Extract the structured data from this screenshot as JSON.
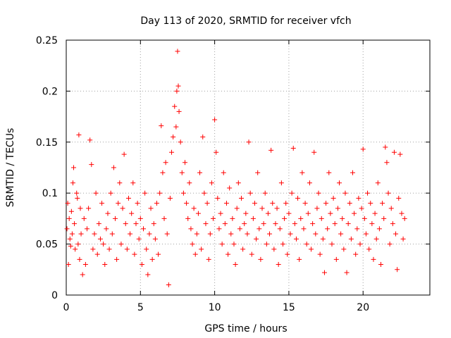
{
  "chart_data": {
    "type": "scatter",
    "title": "Day 113 of 2020, SRMTID for receiver vfch",
    "xlabel": "GPS time / hours",
    "ylabel": "SRMTID / TECUs",
    "xlim": [
      0,
      24.5
    ],
    "ylim": [
      0,
      0.25
    ],
    "x_ticks": [
      0,
      5,
      10,
      15,
      20
    ],
    "x_tick_labels": [
      "0",
      "5",
      "10",
      "15",
      "20"
    ],
    "y_ticks": [
      0,
      0.05,
      0.1,
      0.15,
      0.2,
      0.25
    ],
    "y_tick_labels": [
      "0",
      "0.05",
      "0.1",
      "0.15",
      "0.2",
      "0.25"
    ],
    "grid": true,
    "marker": "+",
    "color": "#ff0000",
    "series": [
      {
        "name": "SRMTID",
        "points": [
          [
            0.05,
            0.065
          ],
          [
            0.1,
            0.09
          ],
          [
            0.15,
            0.03
          ],
          [
            0.2,
            0.075
          ],
          [
            0.25,
            0.055
          ],
          [
            0.3,
            0.048
          ],
          [
            0.35,
            0.082
          ],
          [
            0.4,
            0.06
          ],
          [
            0.45,
            0.11
          ],
          [
            0.5,
            0.125
          ],
          [
            0.55,
            0.07
          ],
          [
            0.6,
            0.045
          ],
          [
            0.7,
            0.1
          ],
          [
            0.75,
            0.095
          ],
          [
            0.8,
            0.05
          ],
          [
            0.85,
            0.157
          ],
          [
            0.9,
            0.035
          ],
          [
            0.95,
            0.085
          ],
          [
            1.0,
            0.06
          ],
          [
            1.1,
            0.02
          ],
          [
            1.2,
            0.075
          ],
          [
            1.3,
            0.03
          ],
          [
            1.4,
            0.065
          ],
          [
            1.5,
            0.085
          ],
          [
            1.6,
            0.152
          ],
          [
            1.7,
            0.128
          ],
          [
            1.8,
            0.045
          ],
          [
            1.9,
            0.06
          ],
          [
            2.0,
            0.1
          ],
          [
            2.1,
            0.04
          ],
          [
            2.2,
            0.07
          ],
          [
            2.3,
            0.055
          ],
          [
            2.4,
            0.09
          ],
          [
            2.5,
            0.05
          ],
          [
            2.6,
            0.03
          ],
          [
            2.7,
            0.065
          ],
          [
            2.8,
            0.08
          ],
          [
            2.9,
            0.045
          ],
          [
            3.0,
            0.1
          ],
          [
            3.1,
            0.06
          ],
          [
            3.2,
            0.125
          ],
          [
            3.3,
            0.075
          ],
          [
            3.4,
            0.035
          ],
          [
            3.5,
            0.09
          ],
          [
            3.6,
            0.11
          ],
          [
            3.7,
            0.05
          ],
          [
            3.8,
            0.085
          ],
          [
            3.9,
            0.138
          ],
          [
            4.0,
            0.07
          ],
          [
            4.1,
            0.045
          ],
          [
            4.2,
            0.095
          ],
          [
            4.3,
            0.06
          ],
          [
            4.4,
            0.08
          ],
          [
            4.5,
            0.11
          ],
          [
            4.6,
            0.04
          ],
          [
            4.7,
            0.07
          ],
          [
            4.8,
            0.09
          ],
          [
            4.9,
            0.055
          ],
          [
            5.0,
            0.075
          ],
          [
            5.1,
            0.03
          ],
          [
            5.2,
            0.065
          ],
          [
            5.3,
            0.1
          ],
          [
            5.4,
            0.045
          ],
          [
            5.5,
            0.02
          ],
          [
            5.6,
            0.06
          ],
          [
            5.7,
            0.085
          ],
          [
            5.8,
            0.035
          ],
          [
            5.9,
            0.07
          ],
          [
            6.0,
            0.055
          ],
          [
            6.1,
            0.09
          ],
          [
            6.2,
            0.04
          ],
          [
            6.3,
            0.1
          ],
          [
            6.4,
            0.166
          ],
          [
            6.5,
            0.12
          ],
          [
            6.6,
            0.075
          ],
          [
            6.7,
            0.13
          ],
          [
            6.8,
            0.06
          ],
          [
            6.9,
            0.01
          ],
          [
            7.0,
            0.095
          ],
          [
            7.1,
            0.14
          ],
          [
            7.2,
            0.155
          ],
          [
            7.3,
            0.185
          ],
          [
            7.4,
            0.165
          ],
          [
            7.45,
            0.2
          ],
          [
            7.5,
            0.239
          ],
          [
            7.55,
            0.205
          ],
          [
            7.6,
            0.18
          ],
          [
            7.7,
            0.15
          ],
          [
            7.8,
            0.12
          ],
          [
            7.9,
            0.1
          ],
          [
            8.0,
            0.13
          ],
          [
            8.1,
            0.09
          ],
          [
            8.2,
            0.075
          ],
          [
            8.3,
            0.11
          ],
          [
            8.4,
            0.065
          ],
          [
            8.5,
            0.05
          ],
          [
            8.6,
            0.085
          ],
          [
            8.7,
            0.04
          ],
          [
            8.8,
            0.06
          ],
          [
            8.9,
            0.08
          ],
          [
            9.0,
            0.12
          ],
          [
            9.1,
            0.045
          ],
          [
            9.2,
            0.155
          ],
          [
            9.3,
            0.1
          ],
          [
            9.4,
            0.07
          ],
          [
            9.5,
            0.09
          ],
          [
            9.6,
            0.035
          ],
          [
            9.7,
            0.06
          ],
          [
            9.8,
            0.11
          ],
          [
            9.9,
            0.075
          ],
          [
            10.0,
            0.172
          ],
          [
            10.1,
            0.14
          ],
          [
            10.2,
            0.095
          ],
          [
            10.3,
            0.065
          ],
          [
            10.4,
            0.08
          ],
          [
            10.5,
            0.05
          ],
          [
            10.6,
            0.12
          ],
          [
            10.7,
            0.07
          ],
          [
            10.8,
            0.09
          ],
          [
            10.9,
            0.04
          ],
          [
            11.0,
            0.105
          ],
          [
            11.1,
            0.06
          ],
          [
            11.2,
            0.075
          ],
          [
            11.3,
            0.05
          ],
          [
            11.4,
            0.03
          ],
          [
            11.5,
            0.085
          ],
          [
            11.6,
            0.11
          ],
          [
            11.7,
            0.065
          ],
          [
            11.8,
            0.095
          ],
          [
            11.9,
            0.045
          ],
          [
            12.0,
            0.07
          ],
          [
            12.1,
            0.08
          ],
          [
            12.2,
            0.06
          ],
          [
            12.3,
            0.15
          ],
          [
            12.4,
            0.1
          ],
          [
            12.5,
            0.04
          ],
          [
            12.6,
            0.075
          ],
          [
            12.7,
            0.09
          ],
          [
            12.8,
            0.055
          ],
          [
            12.9,
            0.12
          ],
          [
            13.0,
            0.065
          ],
          [
            13.1,
            0.035
          ],
          [
            13.2,
            0.085
          ],
          [
            13.3,
            0.07
          ],
          [
            13.4,
            0.1
          ],
          [
            13.5,
            0.05
          ],
          [
            13.6,
            0.08
          ],
          [
            13.7,
            0.06
          ],
          [
            13.8,
            0.142
          ],
          [
            13.9,
            0.09
          ],
          [
            14.0,
            0.045
          ],
          [
            14.1,
            0.07
          ],
          [
            14.2,
            0.085
          ],
          [
            14.3,
            0.03
          ],
          [
            14.4,
            0.065
          ],
          [
            14.5,
            0.11
          ],
          [
            14.6,
            0.05
          ],
          [
            14.7,
            0.075
          ],
          [
            14.8,
            0.09
          ],
          [
            14.9,
            0.04
          ],
          [
            15.0,
            0.08
          ],
          [
            15.1,
            0.06
          ],
          [
            15.2,
            0.1
          ],
          [
            15.3,
            0.144
          ],
          [
            15.4,
            0.07
          ],
          [
            15.5,
            0.055
          ],
          [
            15.6,
            0.095
          ],
          [
            15.7,
            0.035
          ],
          [
            15.8,
            0.075
          ],
          [
            15.9,
            0.12
          ],
          [
            16.0,
            0.065
          ],
          [
            16.1,
            0.09
          ],
          [
            16.2,
            0.05
          ],
          [
            16.3,
            0.08
          ],
          [
            16.4,
            0.11
          ],
          [
            16.5,
            0.045
          ],
          [
            16.6,
            0.07
          ],
          [
            16.7,
            0.14
          ],
          [
            16.8,
            0.06
          ],
          [
            16.9,
            0.085
          ],
          [
            17.0,
            0.1
          ],
          [
            17.1,
            0.04
          ],
          [
            17.2,
            0.075
          ],
          [
            17.3,
            0.055
          ],
          [
            17.4,
            0.022
          ],
          [
            17.5,
            0.09
          ],
          [
            17.6,
            0.065
          ],
          [
            17.7,
            0.12
          ],
          [
            17.8,
            0.08
          ],
          [
            17.9,
            0.05
          ],
          [
            18.0,
            0.095
          ],
          [
            18.1,
            0.07
          ],
          [
            18.2,
            0.035
          ],
          [
            18.3,
            0.085
          ],
          [
            18.4,
            0.11
          ],
          [
            18.5,
            0.06
          ],
          [
            18.6,
            0.075
          ],
          [
            18.7,
            0.045
          ],
          [
            18.8,
            0.1
          ],
          [
            18.9,
            0.022
          ],
          [
            19.0,
            0.07
          ],
          [
            19.1,
            0.09
          ],
          [
            19.2,
            0.055
          ],
          [
            19.3,
            0.12
          ],
          [
            19.4,
            0.08
          ],
          [
            19.5,
            0.04
          ],
          [
            19.6,
            0.065
          ],
          [
            19.7,
            0.095
          ],
          [
            19.8,
            0.05
          ],
          [
            19.9,
            0.085
          ],
          [
            20.0,
            0.143
          ],
          [
            20.1,
            0.075
          ],
          [
            20.2,
            0.06
          ],
          [
            20.3,
            0.1
          ],
          [
            20.4,
            0.045
          ],
          [
            20.5,
            0.09
          ],
          [
            20.6,
            0.07
          ],
          [
            20.7,
            0.035
          ],
          [
            20.8,
            0.08
          ],
          [
            20.9,
            0.055
          ],
          [
            21.0,
            0.11
          ],
          [
            21.1,
            0.065
          ],
          [
            21.2,
            0.03
          ],
          [
            21.3,
            0.09
          ],
          [
            21.4,
            0.075
          ],
          [
            21.5,
            0.145
          ],
          [
            21.6,
            0.13
          ],
          [
            21.7,
            0.1
          ],
          [
            21.8,
            0.05
          ],
          [
            21.9,
            0.085
          ],
          [
            22.0,
            0.07
          ],
          [
            22.1,
            0.14
          ],
          [
            22.2,
            0.06
          ],
          [
            22.3,
            0.025
          ],
          [
            22.4,
            0.095
          ],
          [
            22.5,
            0.138
          ],
          [
            22.6,
            0.08
          ],
          [
            22.7,
            0.055
          ],
          [
            22.8,
            0.075
          ]
        ]
      }
    ]
  }
}
